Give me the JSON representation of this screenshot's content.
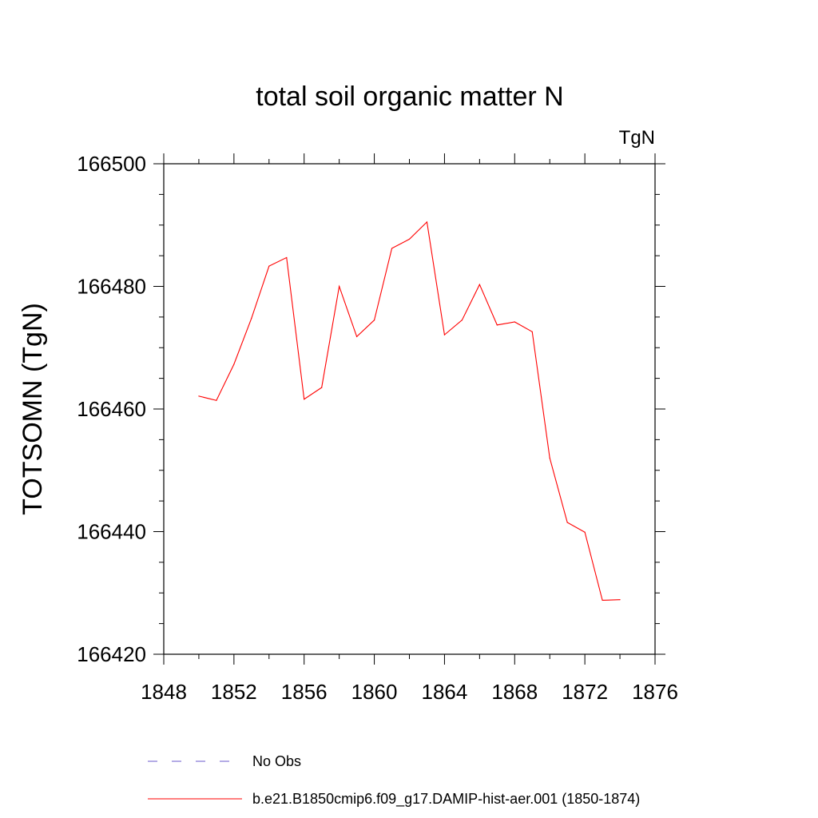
{
  "chart_data": {
    "type": "line",
    "title": "total soil organic matter N",
    "units_label": "TgN",
    "ylabel": "TOTSOMN  (TgN)",
    "xlabel": "",
    "xlim": [
      1848,
      1876
    ],
    "ylim": [
      166420,
      166500
    ],
    "x_ticks": [
      1848,
      1852,
      1856,
      1860,
      1864,
      1868,
      1872,
      1876
    ],
    "y_ticks": [
      166420,
      166440,
      166460,
      166480,
      166500
    ],
    "grid": false,
    "legend_position": "bottom",
    "x": [
      1850,
      1851,
      1852,
      1853,
      1854,
      1855,
      1856,
      1857,
      1858,
      1859,
      1860,
      1861,
      1862,
      1863,
      1864,
      1865,
      1866,
      1867,
      1868,
      1869,
      1870,
      1871,
      1872,
      1873,
      1874
    ],
    "series": [
      {
        "name": "b.e21.B1850cmip6.f09_g17.DAMIP-hist-aer.001 (1850-1874)",
        "color": "#ff0000",
        "style": "solid",
        "values": [
          166462.1,
          166461.4,
          166467.3,
          166474.8,
          166483.3,
          166484.7,
          166461.6,
          166463.5,
          166480.0,
          166471.8,
          166474.5,
          166486.2,
          166487.7,
          166490.5,
          166472.1,
          166474.5,
          166480.3,
          166473.7,
          166474.2,
          166472.6,
          166452.0,
          166441.5,
          166439.9,
          166428.8,
          166428.9
        ]
      }
    ],
    "legend": [
      {
        "label": "No Obs",
        "color": "#6a5acd",
        "style": "dashed"
      },
      {
        "label": "b.e21.B1850cmip6.f09_g17.DAMIP-hist-aer.001 (1850-1874)",
        "color": "#ff0000",
        "style": "solid"
      }
    ]
  }
}
